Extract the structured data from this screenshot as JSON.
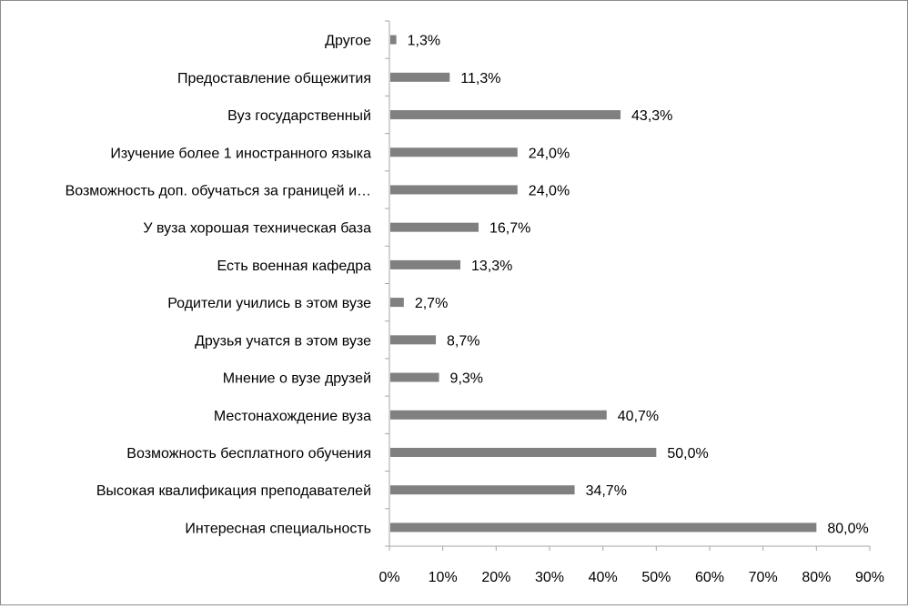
{
  "colors": {
    "bar": "#808080",
    "axis": "#a6a6a6",
    "text": "#000000",
    "frame": "#8c8c8c",
    "background": "#ffffff"
  },
  "chart_data": {
    "type": "bar",
    "orientation": "horizontal",
    "title": "",
    "xlabel": "",
    "ylabel": "",
    "xlim": [
      0,
      90
    ],
    "grid": false,
    "legend": "none",
    "x_ticks": [
      "0%",
      "10%",
      "20%",
      "30%",
      "40%",
      "50%",
      "60%",
      "70%",
      "80%",
      "90%"
    ],
    "categories": [
      "Другое",
      "Предоставление общежития",
      "Вуз государственный",
      "Изучение более 1 иностранного языка",
      "Возможность доп. обучаться за границей  и…",
      "У вуза хорошая техническая база",
      "Есть военная кафедра",
      "Родители учились в этом вузе",
      "Друзья учатся в этом вузе",
      "Мнение о вузе друзей",
      "Местонахождение вуза",
      "Возможность бесплатного обучения",
      "Высокая квалификация преподавателей",
      "Интересная специальность"
    ],
    "values": [
      1.3,
      11.3,
      43.3,
      24.0,
      24.0,
      16.7,
      13.3,
      2.7,
      8.7,
      9.3,
      40.7,
      50.0,
      34.7,
      80.0
    ],
    "data_labels": [
      "1,3%",
      "11,3%",
      "43,3%",
      "24,0%",
      "24,0%",
      "16,7%",
      "13,3%",
      "2,7%",
      "8,7%",
      "9,3%",
      "40,7%",
      "50,0%",
      "34,7%",
      "80,0%"
    ]
  }
}
